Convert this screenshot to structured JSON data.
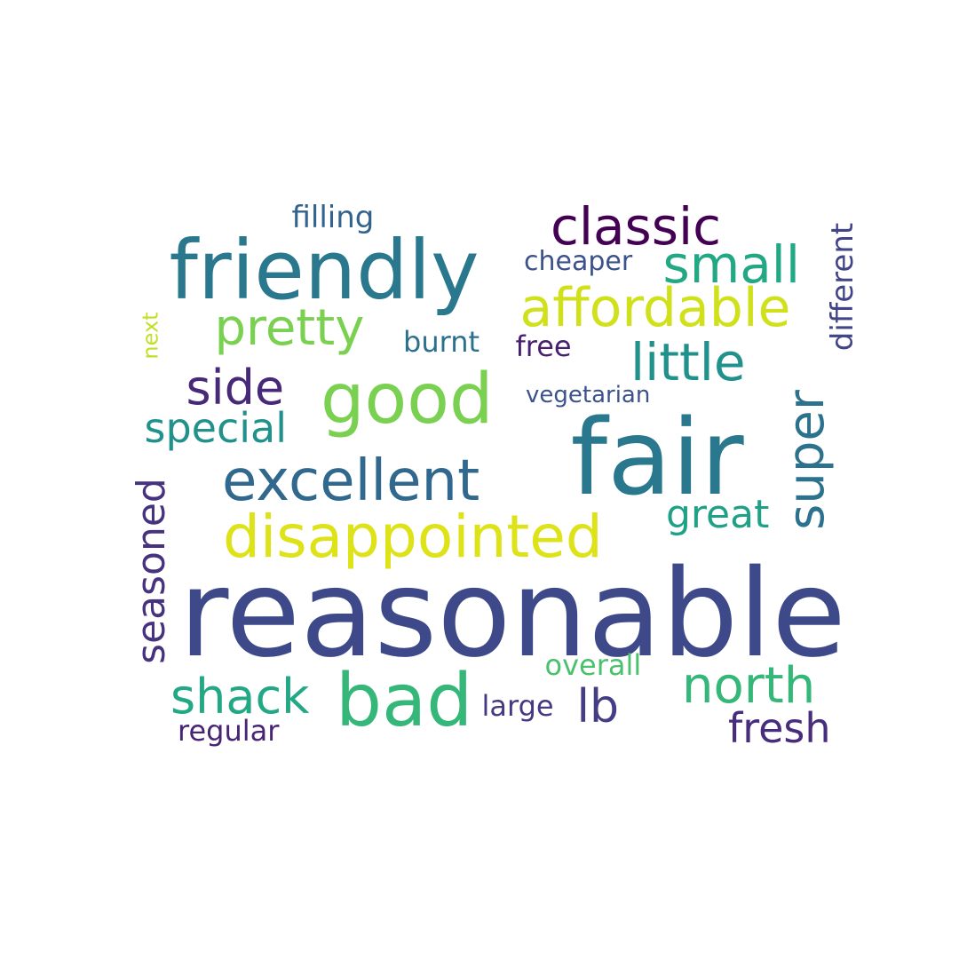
{
  "words": [
    {
      "id": "reasonable",
      "text": "reasonable",
      "color": "#3e4989"
    },
    {
      "id": "fair",
      "text": "fair",
      "color": "#2a788e"
    },
    {
      "id": "friendly",
      "text": "friendly",
      "color": "#2a788e"
    },
    {
      "id": "good",
      "text": "good",
      "color": "#7ad151"
    },
    {
      "id": "bad",
      "text": "bad",
      "color": "#35b779"
    },
    {
      "id": "disappointed",
      "text": "disappointed",
      "color": "#dde318"
    },
    {
      "id": "excellent",
      "text": "excellent",
      "color": "#31688e"
    },
    {
      "id": "affordable",
      "text": "affordable",
      "color": "#d0e11c"
    },
    {
      "id": "classic",
      "text": "classic",
      "color": "#440154"
    },
    {
      "id": "small",
      "text": "small",
      "color": "#22a884"
    },
    {
      "id": "little",
      "text": "little",
      "color": "#21918c"
    },
    {
      "id": "pretty",
      "text": "pretty",
      "color": "#7ad151"
    },
    {
      "id": "side",
      "text": "side",
      "color": "#482878"
    },
    {
      "id": "super",
      "text": "super",
      "color": "#2c728e"
    },
    {
      "id": "north",
      "text": "north",
      "color": "#35b779"
    },
    {
      "id": "shack",
      "text": "shack",
      "color": "#22a884"
    },
    {
      "id": "seasoned",
      "text": "seasoned",
      "color": "#46327e"
    },
    {
      "id": "special",
      "text": "special",
      "color": "#21918c"
    },
    {
      "id": "fresh",
      "text": "fresh",
      "color": "#472d7b"
    },
    {
      "id": "lb",
      "text": "lb",
      "color": "#433e85"
    },
    {
      "id": "great",
      "text": "great",
      "color": "#1fa187"
    },
    {
      "id": "different",
      "text": "different",
      "color": "#414487"
    },
    {
      "id": "filling",
      "text": "filling",
      "color": "#33638d"
    },
    {
      "id": "cheaper",
      "text": "cheaper",
      "color": "#3b528b"
    },
    {
      "id": "burnt",
      "text": "burnt",
      "color": "#2d708e"
    },
    {
      "id": "free",
      "text": "free",
      "color": "#481f70"
    },
    {
      "id": "vegetarian",
      "text": "vegetarian",
      "color": "#3b528b"
    },
    {
      "id": "overall",
      "text": "overall",
      "color": "#4ac16d"
    },
    {
      "id": "large",
      "text": "large",
      "color": "#443983"
    },
    {
      "id": "regular",
      "text": "regular",
      "color": "#482475"
    },
    {
      "id": "next",
      "text": "next",
      "color": "#c0df25"
    }
  ]
}
